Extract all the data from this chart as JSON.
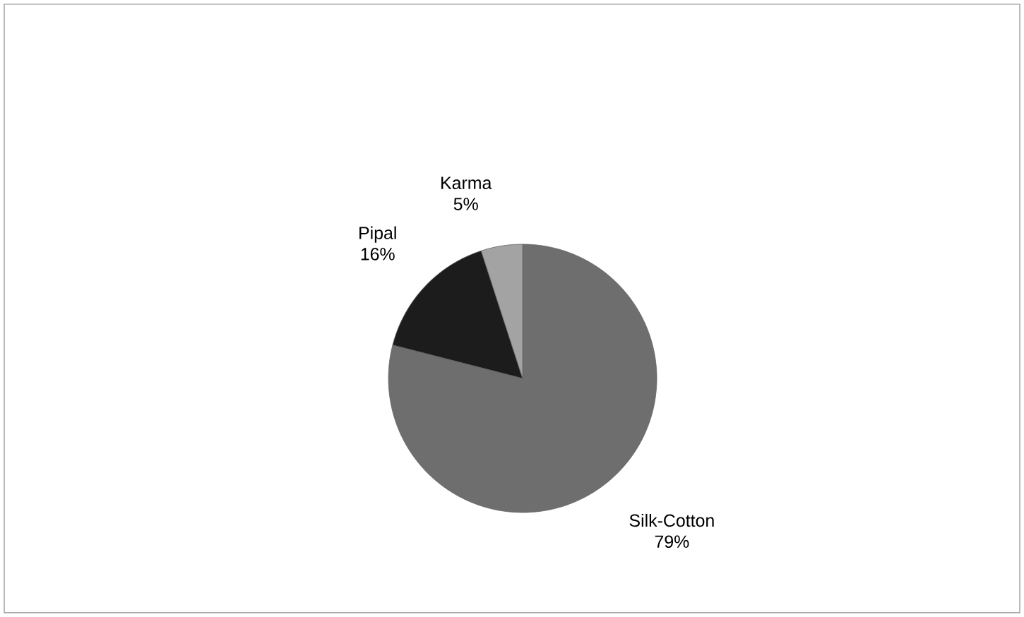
{
  "chart_data": {
    "type": "pie",
    "categories": [
      "Silk-Cotton",
      "Pipal",
      "Karma"
    ],
    "values": [
      79,
      16,
      5
    ],
    "value_labels": [
      "79%",
      "16%",
      "5%"
    ],
    "colors": [
      "#6e6e6e",
      "#1c1c1c",
      "#a3a3a3"
    ]
  }
}
